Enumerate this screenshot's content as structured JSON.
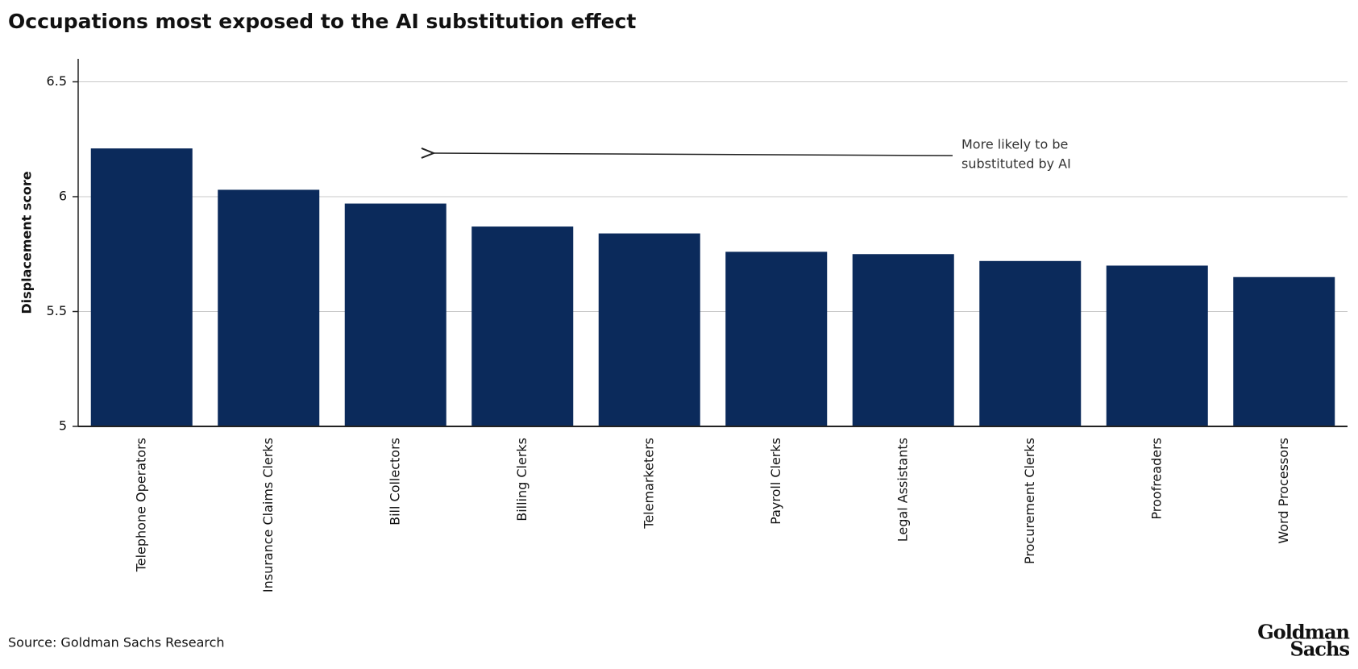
{
  "chart_data": {
    "type": "bar",
    "title": "Occupations most exposed to the AI substitution effect",
    "y_label": "Displacement score",
    "categories": [
      "Telephone Operators",
      "Insurance Claims Clerks",
      "Bill Collectors",
      "Billing Clerks",
      "Telemarketers",
      "Payroll Clerks",
      "Legal Assistants",
      "Procurement Clerks",
      "Proofreaders",
      "Word Processors"
    ],
    "values": [
      6.21,
      6.03,
      5.97,
      5.87,
      5.84,
      5.76,
      5.75,
      5.72,
      5.7,
      5.65
    ],
    "color": "#0b2a5b",
    "ylim": [
      5,
      6.6
    ],
    "yticks": [
      5,
      5.5,
      6,
      6.5
    ],
    "grid": true,
    "annotation": [
      "More likely to be",
      "substituted by AI"
    ],
    "source": "Source: Goldman Sachs Research",
    "logo": [
      "Goldman",
      "Sachs"
    ]
  }
}
